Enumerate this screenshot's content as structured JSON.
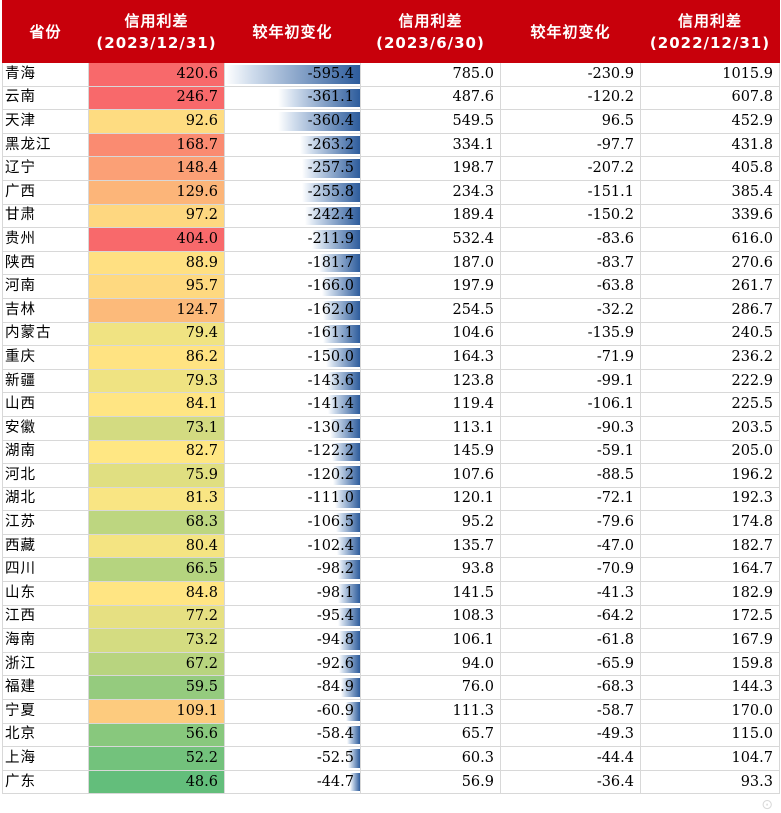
{
  "headers": [
    {
      "line1": "省份",
      "line2": ""
    },
    {
      "line1": "信用利差",
      "line2": "(2023/12/31)"
    },
    {
      "line1": "较年初变化",
      "line2": ""
    },
    {
      "line1": "信用利差",
      "line2": "(2023/6/30)"
    },
    {
      "line1": "较年初变化",
      "line2": ""
    },
    {
      "line1": "信用利差",
      "line2": "(2022/12/31)"
    }
  ],
  "rows": [
    {
      "province": "青海",
      "spread_2023_12": "420.6",
      "change_2023_12": "-595.4",
      "spread_2023_06": "785.0",
      "change_2023_06": "-230.9",
      "spread_2022_12": "1015.9"
    },
    {
      "province": "云南",
      "spread_2023_12": "246.7",
      "change_2023_12": "-361.1",
      "spread_2023_06": "487.6",
      "change_2023_06": "-120.2",
      "spread_2022_12": "607.8"
    },
    {
      "province": "天津",
      "spread_2023_12": "92.6",
      "change_2023_12": "-360.4",
      "spread_2023_06": "549.5",
      "change_2023_06": "96.5",
      "spread_2022_12": "452.9"
    },
    {
      "province": "黑龙江",
      "spread_2023_12": "168.7",
      "change_2023_12": "-263.2",
      "spread_2023_06": "334.1",
      "change_2023_06": "-97.7",
      "spread_2022_12": "431.8"
    },
    {
      "province": "辽宁",
      "spread_2023_12": "148.4",
      "change_2023_12": "-257.5",
      "spread_2023_06": "198.7",
      "change_2023_06": "-207.2",
      "spread_2022_12": "405.8"
    },
    {
      "province": "广西",
      "spread_2023_12": "129.6",
      "change_2023_12": "-255.8",
      "spread_2023_06": "234.3",
      "change_2023_06": "-151.1",
      "spread_2022_12": "385.4"
    },
    {
      "province": "甘肃",
      "spread_2023_12": "97.2",
      "change_2023_12": "-242.4",
      "spread_2023_06": "189.4",
      "change_2023_06": "-150.2",
      "spread_2022_12": "339.6"
    },
    {
      "province": "贵州",
      "spread_2023_12": "404.0",
      "change_2023_12": "-211.9",
      "spread_2023_06": "532.4",
      "change_2023_06": "-83.6",
      "spread_2022_12": "616.0"
    },
    {
      "province": "陕西",
      "spread_2023_12": "88.9",
      "change_2023_12": "-181.7",
      "spread_2023_06": "187.0",
      "change_2023_06": "-83.7",
      "spread_2022_12": "270.6"
    },
    {
      "province": "河南",
      "spread_2023_12": "95.7",
      "change_2023_12": "-166.0",
      "spread_2023_06": "197.9",
      "change_2023_06": "-63.8",
      "spread_2022_12": "261.7"
    },
    {
      "province": "吉林",
      "spread_2023_12": "124.7",
      "change_2023_12": "-162.0",
      "spread_2023_06": "254.5",
      "change_2023_06": "-32.2",
      "spread_2022_12": "286.7"
    },
    {
      "province": "内蒙古",
      "spread_2023_12": "79.4",
      "change_2023_12": "-161.1",
      "spread_2023_06": "104.6",
      "change_2023_06": "-135.9",
      "spread_2022_12": "240.5"
    },
    {
      "province": "重庆",
      "spread_2023_12": "86.2",
      "change_2023_12": "-150.0",
      "spread_2023_06": "164.3",
      "change_2023_06": "-71.9",
      "spread_2022_12": "236.2"
    },
    {
      "province": "新疆",
      "spread_2023_12": "79.3",
      "change_2023_12": "-143.6",
      "spread_2023_06": "123.8",
      "change_2023_06": "-99.1",
      "spread_2022_12": "222.9"
    },
    {
      "province": "山西",
      "spread_2023_12": "84.1",
      "change_2023_12": "-141.4",
      "spread_2023_06": "119.4",
      "change_2023_06": "-106.1",
      "spread_2022_12": "225.5"
    },
    {
      "province": "安徽",
      "spread_2023_12": "73.1",
      "change_2023_12": "-130.4",
      "spread_2023_06": "113.1",
      "change_2023_06": "-90.3",
      "spread_2022_12": "203.5"
    },
    {
      "province": "湖南",
      "spread_2023_12": "82.7",
      "change_2023_12": "-122.2",
      "spread_2023_06": "145.9",
      "change_2023_06": "-59.1",
      "spread_2022_12": "205.0"
    },
    {
      "province": "河北",
      "spread_2023_12": "75.9",
      "change_2023_12": "-120.2",
      "spread_2023_06": "107.6",
      "change_2023_06": "-88.5",
      "spread_2022_12": "196.2"
    },
    {
      "province": "湖北",
      "spread_2023_12": "81.3",
      "change_2023_12": "-111.0",
      "spread_2023_06": "120.1",
      "change_2023_06": "-72.1",
      "spread_2022_12": "192.3"
    },
    {
      "province": "江苏",
      "spread_2023_12": "68.3",
      "change_2023_12": "-106.5",
      "spread_2023_06": "95.2",
      "change_2023_06": "-79.6",
      "spread_2022_12": "174.8"
    },
    {
      "province": "西藏",
      "spread_2023_12": "80.4",
      "change_2023_12": "-102.4",
      "spread_2023_06": "135.7",
      "change_2023_06": "-47.0",
      "spread_2022_12": "182.7"
    },
    {
      "province": "四川",
      "spread_2023_12": "66.5",
      "change_2023_12": "-98.2",
      "spread_2023_06": "93.8",
      "change_2023_06": "-70.9",
      "spread_2022_12": "164.7"
    },
    {
      "province": "山东",
      "spread_2023_12": "84.8",
      "change_2023_12": "-98.1",
      "spread_2023_06": "141.5",
      "change_2023_06": "-41.3",
      "spread_2022_12": "182.9"
    },
    {
      "province": "江西",
      "spread_2023_12": "77.2",
      "change_2023_12": "-95.4",
      "spread_2023_06": "108.3",
      "change_2023_06": "-64.2",
      "spread_2022_12": "172.5"
    },
    {
      "province": "海南",
      "spread_2023_12": "73.2",
      "change_2023_12": "-94.8",
      "spread_2023_06": "106.1",
      "change_2023_06": "-61.8",
      "spread_2022_12": "167.9"
    },
    {
      "province": "浙江",
      "spread_2023_12": "67.2",
      "change_2023_12": "-92.6",
      "spread_2023_06": "94.0",
      "change_2023_06": "-65.9",
      "spread_2022_12": "159.8"
    },
    {
      "province": "福建",
      "spread_2023_12": "59.5",
      "change_2023_12": "-84.9",
      "spread_2023_06": "76.0",
      "change_2023_06": "-68.3",
      "spread_2022_12": "144.3"
    },
    {
      "province": "宁夏",
      "spread_2023_12": "109.1",
      "change_2023_12": "-60.9",
      "spread_2023_06": "111.3",
      "change_2023_06": "-58.7",
      "spread_2022_12": "170.0"
    },
    {
      "province": "北京",
      "spread_2023_12": "56.6",
      "change_2023_12": "-58.4",
      "spread_2023_06": "65.7",
      "change_2023_06": "-49.3",
      "spread_2022_12": "115.0"
    },
    {
      "province": "上海",
      "spread_2023_12": "52.2",
      "change_2023_12": "-52.5",
      "spread_2023_06": "60.3",
      "change_2023_06": "-44.4",
      "spread_2022_12": "104.7"
    },
    {
      "province": "广东",
      "spread_2023_12": "48.6",
      "change_2023_12": "-44.7",
      "spread_2023_06": "56.9",
      "change_2023_06": "-36.4",
      "spread_2022_12": "93.3"
    }
  ],
  "colors": {
    "header_bg": "#c8000b",
    "heat_low": "#63be7b",
    "heat_mid": "#ffe783",
    "heat_high": "#f8696b",
    "bar_dark": "#2d5c9c"
  }
}
